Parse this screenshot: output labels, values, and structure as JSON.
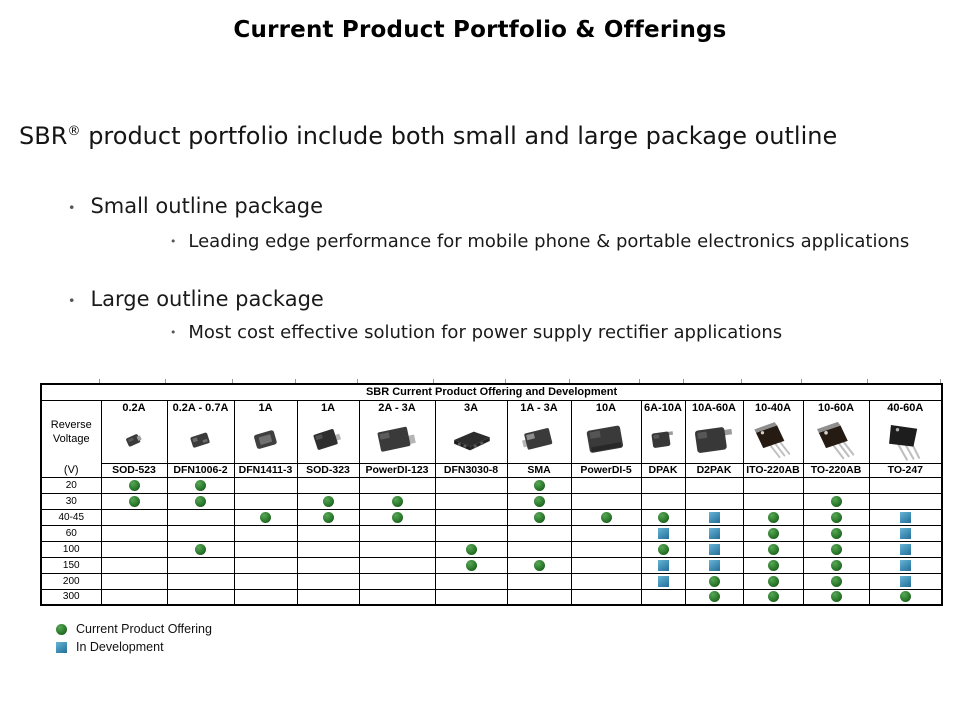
{
  "slide": {
    "title": "Current Product Portfolio & Offerings",
    "subtitle": {
      "brand": "SBR",
      "reg_mark": "®",
      "rest": " product portfolio include both small and large package outline"
    },
    "bullet_char": "•",
    "bullets": [
      {
        "label": "Small outline package",
        "sub": "Leading edge performance for mobile phone & portable electronics applications"
      },
      {
        "label": "Large outline package",
        "sub": "Most cost effective solution for power supply rectifier applications"
      }
    ]
  },
  "table": {
    "title": "SBR Current Product Offering and Development",
    "corner": {
      "line1": "Reverse",
      "line2": "Voltage",
      "line3": "(V)"
    },
    "columns": [
      {
        "current": "0.2A",
        "package": "SOD-523",
        "image": "sod523-package-icon",
        "type": "sod523"
      },
      {
        "current": "0.2A - 0.7A",
        "package": "DFN1006-2",
        "image": "dfn1006-package-icon",
        "type": "dfn1006"
      },
      {
        "current": "1A",
        "package": "DFN1411-3",
        "image": "dfn1411-package-icon",
        "type": "dfn1411"
      },
      {
        "current": "1A",
        "package": "SOD-323",
        "image": "sod323-package-icon",
        "type": "sod323"
      },
      {
        "current": "2A - 3A",
        "package": "PowerDI-123",
        "image": "powerdi123-package-icon",
        "type": "powerdi123"
      },
      {
        "current": "3A",
        "package": "DFN3030-8",
        "image": "dfn3030-package-icon",
        "type": "dfn3030"
      },
      {
        "current": "1A - 3A",
        "package": "SMA",
        "image": "sma-package-icon",
        "type": "sma"
      },
      {
        "current": "10A",
        "package": "PowerDI-5",
        "image": "powerdi5-package-icon",
        "type": "powerdi5"
      },
      {
        "current": "6A-10A",
        "package": "DPAK",
        "image": "dpak-package-icon",
        "type": "dpak"
      },
      {
        "current": "10A-60A",
        "package": "D2PAK",
        "image": "d2pak-package-icon",
        "type": "d2pak"
      },
      {
        "current": "10-40A",
        "package": "ITO-220AB",
        "image": "ito220-package-icon",
        "type": "ito220"
      },
      {
        "current": "10-60A",
        "package": "TO-220AB",
        "image": "to220-package-icon",
        "type": "to220"
      },
      {
        "current": "40-60A",
        "package": "TO-247",
        "image": "to247-package-icon",
        "type": "to247"
      }
    ],
    "rows": [
      {
        "voltage": "20",
        "cells": [
          "offering",
          "offering",
          "",
          "",
          "",
          "",
          "offering",
          "",
          "",
          "",
          "",
          "",
          ""
        ]
      },
      {
        "voltage": "30",
        "cells": [
          "offering",
          "offering",
          "",
          "offering",
          "offering",
          "",
          "offering",
          "",
          "",
          "",
          "",
          "offering",
          ""
        ]
      },
      {
        "voltage": "40-45",
        "cells": [
          "",
          "",
          "offering",
          "offering",
          "offering",
          "",
          "offering",
          "offering",
          "offering",
          "development",
          "offering",
          "offering",
          "development"
        ]
      },
      {
        "voltage": "60",
        "cells": [
          "",
          "",
          "",
          "",
          "",
          "",
          "",
          "",
          "development",
          "development",
          "offering",
          "offering",
          "development"
        ]
      },
      {
        "voltage": "100",
        "cells": [
          "",
          "offering",
          "",
          "",
          "",
          "offering",
          "",
          "",
          "offering",
          "development",
          "offering",
          "offering",
          "development"
        ]
      },
      {
        "voltage": "150",
        "cells": [
          "",
          "",
          "",
          "",
          "",
          "offering",
          "offering",
          "",
          "development",
          "development",
          "offering",
          "offering",
          "development"
        ]
      },
      {
        "voltage": "200",
        "cells": [
          "",
          "",
          "",
          "",
          "",
          "",
          "",
          "",
          "development",
          "offering",
          "offering",
          "offering",
          "development"
        ]
      },
      {
        "voltage": "300",
        "cells": [
          "",
          "",
          "",
          "",
          "",
          "",
          "",
          "",
          "",
          "offering",
          "offering",
          "offering",
          "offering"
        ]
      }
    ]
  },
  "legend": {
    "items": [
      {
        "marker": "green-dot",
        "label": "Current Product Offering",
        "color": "#2c7b2c"
      },
      {
        "marker": "blue-square",
        "label": "In Development",
        "color": "#3987b0"
      }
    ]
  }
}
